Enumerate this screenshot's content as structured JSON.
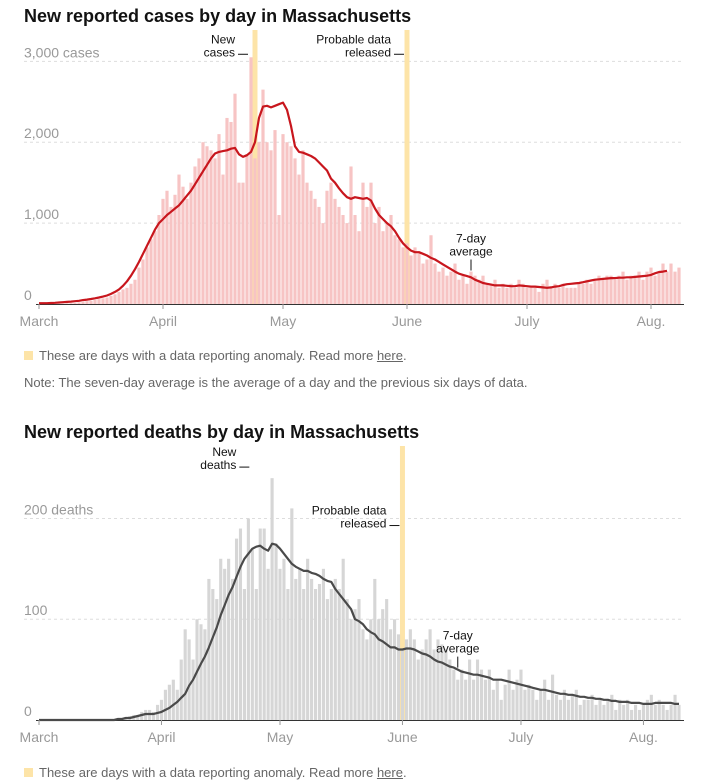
{
  "colors": {
    "cases_bar": "#f7c4c4",
    "cases_line": "#c8161d",
    "deaths_bar": "#d6d6d6",
    "deaths_line": "#4a4a4a",
    "anomaly": "#fde4a8",
    "grid": "#dddddd",
    "axis_text": "#999999",
    "ink": "#121212"
  },
  "legend": {
    "anomaly_text": "These are days with a data reporting anomaly. Read more ",
    "anomaly_link": "here",
    "anomaly_end": "."
  },
  "note": "Note: The seven-day average is the average of a day and the previous six days of data.",
  "chart_data": [
    {
      "type": "bar",
      "title": "New reported cases by day in Massachusetts",
      "x_labels": [
        "March",
        "April",
        "May",
        "June",
        "July",
        "Aug."
      ],
      "y_ticks": [
        {
          "value": 0,
          "label": "0"
        },
        {
          "value": 1000,
          "label": "1,000"
        },
        {
          "value": 2000,
          "label": "2,000"
        },
        {
          "value": 3000,
          "label": "3,000 cases"
        }
      ],
      "ylim": [
        0,
        3350
      ],
      "x_start": "2020-03-01",
      "anomaly_dates": [
        "2020-04-24",
        "2020-06-01"
      ],
      "annotations": [
        {
          "label": [
            "New",
            "cases"
          ],
          "date": "2020-04-23",
          "value": 3050
        },
        {
          "label": [
            "Probable data",
            "released"
          ],
          "date": "2020-06-01",
          "value": 3050
        },
        {
          "label": [
            "7-day",
            "average"
          ],
          "date": "2020-06-17",
          "value": 390
        }
      ],
      "series": [
        {
          "name": "New cases",
          "values": [
            1,
            1,
            1,
            1,
            2,
            3,
            5,
            8,
            10,
            12,
            20,
            25,
            35,
            40,
            50,
            60,
            70,
            80,
            100,
            120,
            150,
            180,
            200,
            250,
            300,
            450,
            550,
            700,
            800,
            900,
            1100,
            1300,
            1400,
            1200,
            1350,
            1600,
            1450,
            1300,
            1500,
            1700,
            1800,
            2000,
            1950,
            1900,
            1800,
            2100,
            1600,
            2300,
            2250,
            2600,
            1500,
            1500,
            1850,
            3050,
            1800,
            2000,
            2650,
            2000,
            1900,
            2150,
            1100,
            2100,
            2000,
            1950,
            1800,
            1600,
            1900,
            1500,
            1400,
            1300,
            1200,
            1000,
            1400,
            1500,
            1300,
            1200,
            1100,
            1000,
            1700,
            1100,
            900,
            1500,
            1200,
            1500,
            1000,
            1200,
            900,
            1000,
            1100,
            850,
            800,
            700,
            750,
            600,
            700,
            650,
            500,
            550,
            850,
            500,
            400,
            450,
            350,
            400,
            500,
            300,
            350,
            250,
            400,
            350,
            300,
            350,
            250,
            250,
            300,
            200,
            250,
            200,
            250,
            200,
            300,
            250,
            200,
            200,
            200,
            150,
            250,
            300,
            200,
            250,
            200,
            250,
            200,
            200,
            200,
            250,
            250,
            300,
            250,
            300,
            350,
            300,
            350,
            350,
            300,
            350,
            400,
            300,
            350,
            350,
            400,
            300,
            400,
            450,
            350,
            400,
            500,
            400,
            500,
            400,
            450
          ]
        },
        {
          "name": "7-day average",
          "values": [
            10,
            10,
            10,
            12,
            15,
            18,
            22,
            26,
            30,
            35,
            40,
            48,
            55,
            62,
            70,
            80,
            92,
            105,
            125,
            150,
            180,
            225,
            280,
            350,
            430,
            520,
            620,
            720,
            820,
            920,
            1000,
            1050,
            1100,
            1140,
            1180,
            1220,
            1280,
            1340,
            1400,
            1480,
            1560,
            1640,
            1720,
            1800,
            1860,
            1880,
            1890,
            1900,
            1920,
            1930,
            1850,
            1820,
            1840,
            1880,
            2000,
            2300,
            2440,
            2450,
            2430,
            2450,
            2470,
            2490,
            2400,
            2200,
            1950,
            1880,
            1870,
            1850,
            1830,
            1800,
            1750,
            1700,
            1650,
            1550,
            1500,
            1430,
            1370,
            1320,
            1300,
            1320,
            1310,
            1300,
            1310,
            1280,
            1180,
            1100,
            1050,
            1000,
            960,
            900,
            820,
            750,
            700,
            660,
            640,
            640,
            620,
            600,
            570,
            550,
            520,
            490,
            460,
            430,
            400,
            375,
            360,
            345,
            330,
            300,
            280,
            260,
            250,
            240,
            230,
            230,
            230,
            225,
            220,
            220,
            230,
            225,
            220,
            215,
            215,
            210,
            205,
            200,
            205,
            215,
            220,
            235,
            245,
            250,
            255,
            260,
            270,
            280,
            290,
            300,
            305,
            310,
            315,
            320,
            320,
            325,
            325,
            330,
            330,
            335,
            340,
            345,
            350,
            360,
            380,
            395,
            400,
            410
          ]
        }
      ]
    },
    {
      "type": "bar",
      "title": "New reported deaths by day in Massachusetts",
      "x_labels": [
        "March",
        "April",
        "May",
        "June",
        "July",
        "Aug."
      ],
      "y_ticks": [
        {
          "value": 0,
          "label": "0"
        },
        {
          "value": 100,
          "label": "100"
        },
        {
          "value": 200,
          "label": "200 deaths"
        }
      ],
      "ylim": [
        0,
        260
      ],
      "x_start": "2020-03-01",
      "anomaly_dates": [
        "2020-06-01"
      ],
      "annotations": [
        {
          "label": [
            "New",
            "deaths"
          ],
          "date": "2020-04-24",
          "value": 248
        },
        {
          "label": [
            "Probable data",
            "released"
          ],
          "date": "2020-06-01",
          "value": 190
        },
        {
          "label": [
            "7-day",
            "average"
          ],
          "date": "2020-06-15",
          "value": 50
        }
      ],
      "series": [
        {
          "name": "New deaths",
          "values": [
            0,
            0,
            0,
            0,
            0,
            0,
            0,
            0,
            0,
            0,
            0,
            0,
            0,
            0,
            0,
            0,
            0,
            0,
            0,
            0,
            1,
            2,
            3,
            4,
            5,
            5,
            8,
            10,
            10,
            8,
            15,
            20,
            30,
            35,
            40,
            30,
            60,
            90,
            80,
            60,
            100,
            95,
            90,
            140,
            130,
            120,
            160,
            150,
            160,
            140,
            180,
            190,
            130,
            200,
            170,
            130,
            190,
            190,
            150,
            240,
            175,
            150,
            160,
            130,
            210,
            140,
            150,
            130,
            160,
            140,
            130,
            135,
            150,
            120,
            130,
            140,
            130,
            160,
            120,
            100,
            110,
            120,
            90,
            80,
            100,
            140,
            100,
            110,
            120,
            90,
            100,
            85,
            70,
            80,
            90,
            80,
            60,
            70,
            80,
            90,
            70,
            80,
            75,
            70,
            60,
            50,
            40,
            50,
            40,
            60,
            40,
            60,
            50,
            40,
            50,
            30,
            40,
            20,
            35,
            50,
            30,
            40,
            50,
            30,
            35,
            30,
            20,
            30,
            40,
            20,
            45,
            25,
            20,
            30,
            20,
            25,
            30,
            15,
            20,
            20,
            25,
            15,
            20,
            15,
            20,
            25,
            10,
            20,
            15,
            20,
            10,
            15,
            10,
            15,
            20,
            25,
            15,
            20,
            15,
            10,
            15,
            25,
            15
          ]
        },
        {
          "name": "7-day average",
          "values": [
            0,
            0,
            0,
            0,
            0,
            0,
            0,
            0,
            0,
            0,
            0,
            0,
            0,
            0,
            0,
            0,
            0,
            0,
            0,
            0,
            1,
            1,
            2,
            2,
            3,
            4,
            5,
            6,
            6,
            6,
            7,
            8,
            10,
            12,
            15,
            18,
            22,
            26,
            34,
            40,
            48,
            56,
            63,
            72,
            82,
            92,
            104,
            114,
            124,
            132,
            142,
            152,
            160,
            165,
            170,
            172,
            173,
            170,
            168,
            175,
            174,
            170,
            165,
            160,
            155,
            152,
            150,
            148,
            148,
            146,
            145,
            143,
            140,
            138,
            137,
            130,
            125,
            120,
            115,
            110,
            100,
            98,
            95,
            90,
            87,
            85,
            80,
            78,
            75,
            72,
            72,
            70,
            70,
            71,
            71,
            70,
            68,
            66,
            65,
            63,
            60,
            58,
            57,
            55,
            53,
            52,
            50,
            48,
            47,
            46,
            45,
            45,
            44,
            43,
            42,
            40,
            40,
            40,
            39,
            38,
            37,
            36,
            35,
            34,
            33,
            32,
            31,
            30,
            30,
            29,
            28,
            27,
            26,
            26,
            25,
            25,
            24,
            23,
            23,
            22,
            22,
            21,
            21,
            20,
            20,
            19,
            19,
            18,
            18,
            18,
            17,
            17,
            17,
            16,
            16,
            16,
            17,
            17,
            17,
            17,
            17,
            16,
            16
          ]
        }
      ]
    }
  ]
}
